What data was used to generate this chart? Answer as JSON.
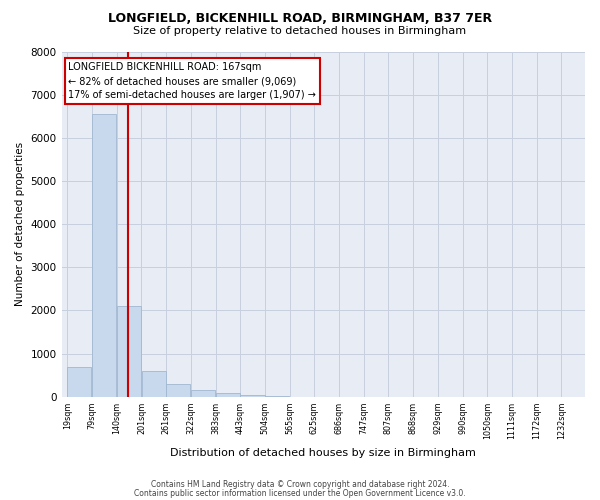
{
  "title1": "LONGFIELD, BICKENHILL ROAD, BIRMINGHAM, B37 7ER",
  "title2": "Size of property relative to detached houses in Birmingham",
  "xlabel": "Distribution of detached houses by size in Birmingham",
  "ylabel": "Number of detached properties",
  "footnote1": "Contains HM Land Registry data © Crown copyright and database right 2024.",
  "footnote2": "Contains public sector information licensed under the Open Government Licence v3.0.",
  "bar_left_edges": [
    19,
    79,
    140,
    201,
    261,
    322,
    383,
    443,
    504,
    565,
    625,
    686,
    747,
    807,
    868,
    929,
    990,
    1050,
    1111,
    1172
  ],
  "bar_widths": [
    60,
    61,
    61,
    60,
    61,
    61,
    60,
    61,
    61,
    60,
    61,
    61,
    60,
    61,
    61,
    61,
    60,
    61,
    61,
    60
  ],
  "bar_heights": [
    700,
    6550,
    2100,
    600,
    300,
    150,
    80,
    40,
    20,
    5,
    0,
    0,
    0,
    0,
    0,
    0,
    0,
    0,
    0,
    0
  ],
  "bar_color": "#c9d9ed",
  "bar_edge_color": "#a0b8d0",
  "tick_labels": [
    "19sqm",
    "79sqm",
    "140sqm",
    "201sqm",
    "261sqm",
    "322sqm",
    "383sqm",
    "443sqm",
    "504sqm",
    "565sqm",
    "625sqm",
    "686sqm",
    "747sqm",
    "807sqm",
    "868sqm",
    "929sqm",
    "990sqm",
    "1050sqm",
    "1111sqm",
    "1172sqm",
    "1232sqm"
  ],
  "property_size": 167,
  "red_line_color": "#cc0000",
  "annotation_line1": "LONGFIELD BICKENHILL ROAD: 167sqm",
  "annotation_line2": "← 82% of detached houses are smaller (9,069)",
  "annotation_line3": "17% of semi-detached houses are larger (1,907) →",
  "annotation_box_color": "#cc0000",
  "ylim": [
    0,
    8000
  ],
  "yticks": [
    0,
    1000,
    2000,
    3000,
    4000,
    5000,
    6000,
    7000,
    8000
  ],
  "grid_color": "#c8d0e0",
  "background_color": "#e8edf5",
  "xlim_left": 5,
  "xlim_right": 1290
}
